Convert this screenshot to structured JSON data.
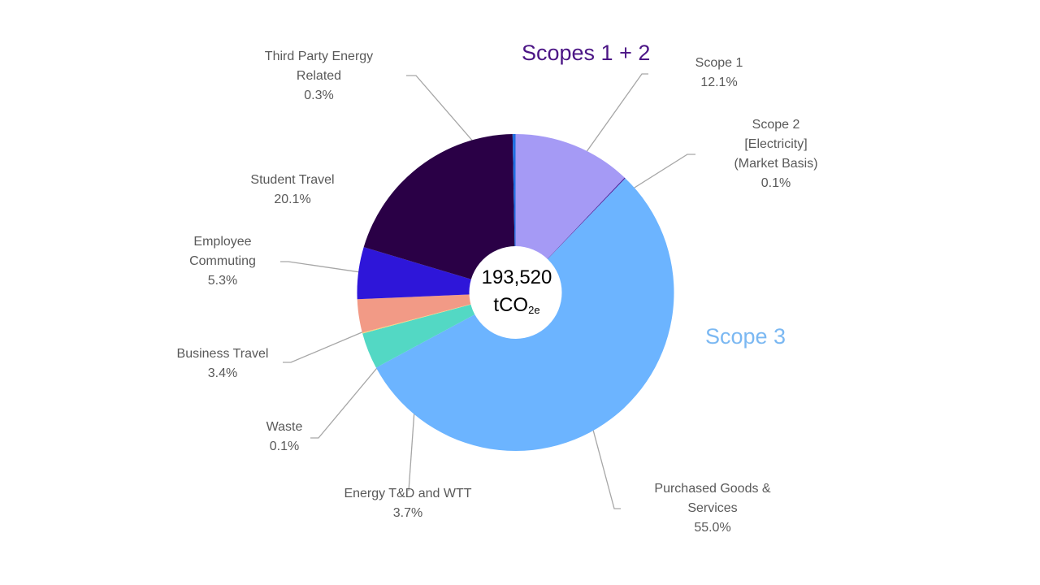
{
  "chart_data": {
    "type": "pie",
    "variant": "donut",
    "center_label": {
      "value": "193,520",
      "unit_main": "tCO",
      "unit_sub": "2e"
    },
    "group_labels": [
      {
        "text": "Scopes 1 + 2",
        "color": "#4B1585"
      },
      {
        "text": "Scope 3",
        "color": "#7BB8F2"
      }
    ],
    "slices": [
      {
        "label": [
          "Scope 1"
        ],
        "pct_label": "12.1%",
        "value": 12.1,
        "color": "#A59AF5"
      },
      {
        "label": [
          "Scope 2",
          "[Electricity]",
          "(Market Basis)"
        ],
        "pct_label": "0.1%",
        "value": 0.1,
        "color": "#4A1F9E"
      },
      {
        "label": [
          "Purchased Goods &",
          "Services"
        ],
        "pct_label": "55.0%",
        "value": 55.0,
        "color": "#6CB4FF"
      },
      {
        "label": [
          "Energy T&D and WTT"
        ],
        "pct_label": "3.7%",
        "value": 3.7,
        "color": "#53D8C4"
      },
      {
        "label": [
          "Waste"
        ],
        "pct_label": "0.1%",
        "value": 0.1,
        "color": "#F5D77E"
      },
      {
        "label": [
          "Business Travel"
        ],
        "pct_label": "3.4%",
        "value": 3.4,
        "color": "#F29A86"
      },
      {
        "label": [
          "Employee",
          "Commuting"
        ],
        "pct_label": "5.3%",
        "value": 5.3,
        "color": "#2E16D9"
      },
      {
        "label": [
          "Student Travel"
        ],
        "pct_label": "20.1%",
        "value": 20.1,
        "color": "#2A0046"
      },
      {
        "label": [
          "Third Party Energy",
          "Related"
        ],
        "pct_label": "0.3%",
        "value": 0.3,
        "color": "#1E6FE0"
      }
    ]
  }
}
